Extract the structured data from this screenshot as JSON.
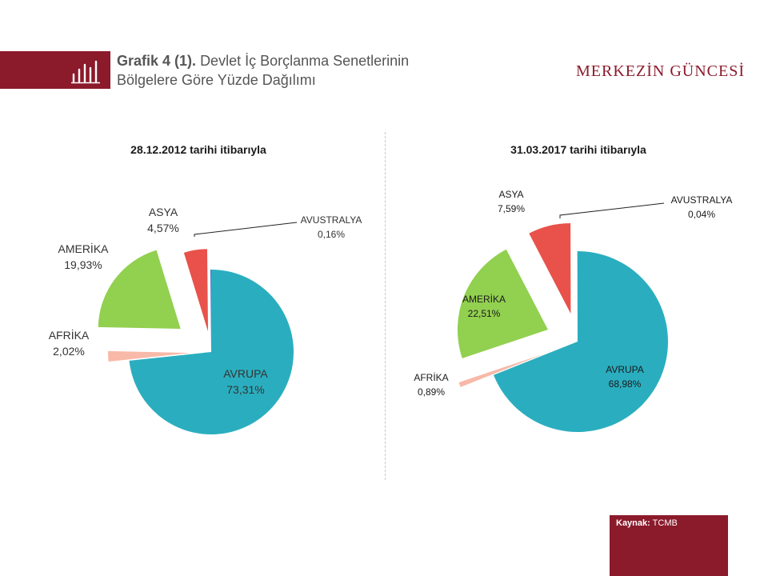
{
  "header": {
    "title_bold": "Grafik 4 (1).",
    "title_line1": "Devlet İç Borçlanma Senetlerinin",
    "title_line2": "Bölgelere Göre Yüzde Dağılımı",
    "brand": "MERKEZİN GÜNCESİ"
  },
  "colors": {
    "brand": "#8b1a2b",
    "avrupa": "#2aaebf",
    "amerika": "#92d050",
    "asya": "#e8524a",
    "afrika": "#f8b9a8",
    "avustralya": "#4472c4"
  },
  "footer": {
    "source_label": "Kaynak:",
    "source_value": "TCMB"
  },
  "chart_data": [
    {
      "type": "pie",
      "title": "28.12.2012 tarihi itibarıyla",
      "slices": [
        {
          "label": "AVRUPA",
          "value": 73.31,
          "display": "73,31%",
          "color": "#2aaebf"
        },
        {
          "label": "AFRİKA",
          "value": 2.02,
          "display": "2,02%",
          "color": "#f8b9a8"
        },
        {
          "label": "AMERİKA",
          "value": 19.93,
          "display": "19,93%",
          "color": "#92d050"
        },
        {
          "label": "ASYA",
          "value": 4.57,
          "display": "4,57%",
          "color": "#e8524a"
        },
        {
          "label": "AVUSTRALYA",
          "value": 0.16,
          "display": "0,16%",
          "color": "#4472c4"
        }
      ]
    },
    {
      "type": "pie",
      "title": "31.03.2017 tarihi itibarıyla",
      "slices": [
        {
          "label": "AVRUPA",
          "value": 68.98,
          "display": "68,98%",
          "color": "#2aaebf"
        },
        {
          "label": "AFRİKA",
          "value": 0.89,
          "display": "0,89%",
          "color": "#f8b9a8"
        },
        {
          "label": "AMERİKA",
          "value": 22.51,
          "display": "22,51%",
          "color": "#92d050"
        },
        {
          "label": "ASYA",
          "value": 7.59,
          "display": "7,59%",
          "color": "#e8524a"
        },
        {
          "label": "AVUSTRALYA",
          "value": 0.04,
          "display": "0,04%",
          "color": "#4472c4"
        }
      ]
    }
  ]
}
